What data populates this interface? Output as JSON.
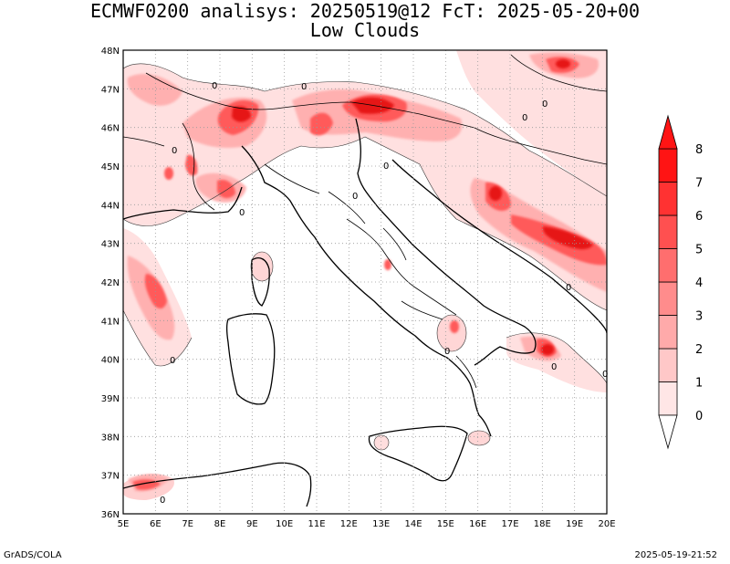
{
  "title_line1": "ECMWF0200 analisys: 20250519@12 FcT: 2025-05-20+00",
  "title_line2": "Low Clouds",
  "footer_left": "GrADS/COLA",
  "footer_right": "2025-05-19-21:52",
  "map": {
    "lon_range": [
      5,
      20
    ],
    "lat_range": [
      36,
      48
    ],
    "lon_ticks": [
      "5E",
      "6E",
      "7E",
      "8E",
      "9E",
      "10E",
      "11E",
      "12E",
      "13E",
      "14E",
      "15E",
      "16E",
      "17E",
      "18E",
      "19E",
      "20E"
    ],
    "lat_ticks": [
      "36N",
      "37N",
      "38N",
      "39N",
      "40N",
      "41N",
      "42N",
      "43N",
      "44N",
      "45N",
      "46N",
      "47N",
      "48N"
    ],
    "grid": "dotted",
    "contour_label": "0"
  },
  "colorbar": {
    "labels": [
      "0",
      "1",
      "2",
      "3",
      "4",
      "5",
      "6",
      "7",
      "8"
    ],
    "colors": [
      "#ffe6e6",
      "#ffc8c8",
      "#ffaaaa",
      "#ff8c8c",
      "#ff6e6e",
      "#ff5050",
      "#ff3232",
      "#ff1414"
    ]
  }
}
